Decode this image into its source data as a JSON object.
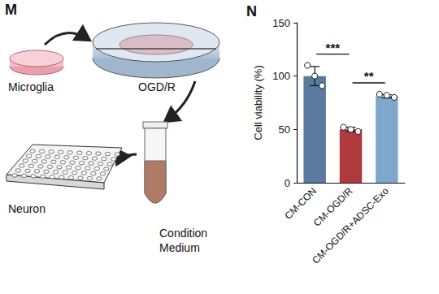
{
  "diagram": {
    "panel_label": "M",
    "nodes": [
      {
        "label": "Microglia"
      },
      {
        "label": "OGD/R"
      },
      {
        "label": "Neuron"
      },
      {
        "label": [
          "Condition",
          "Medium"
        ]
      }
    ]
  },
  "chart_data": {
    "type": "bar",
    "title": "N",
    "categories": [
      "CM-CON",
      "CM-OGD/R",
      "CM-OGD/R+ADSC-Exo"
    ],
    "values": [
      100,
      50,
      81
    ],
    "errors": [
      9,
      2,
      1.5
    ],
    "points": [
      [
        110,
        100,
        91
      ],
      [
        52,
        50,
        48
      ],
      [
        83,
        82,
        80
      ]
    ],
    "colors": [
      "#5b7aa0",
      "#b03a3e",
      "#7ea7cc"
    ],
    "y_label": "Cell viability (%)",
    "ylim": [
      0,
      150
    ],
    "yticks": [
      0,
      50,
      100,
      150
    ],
    "grid": false,
    "significance": [
      {
        "categories": [
          "CM-CON",
          "CM-OGD/R"
        ],
        "label": "***"
      },
      {
        "categories": [
          "CM-OGD/R",
          "CM-OGD/R+ADSC-Exo"
        ],
        "label": "**"
      }
    ]
  }
}
